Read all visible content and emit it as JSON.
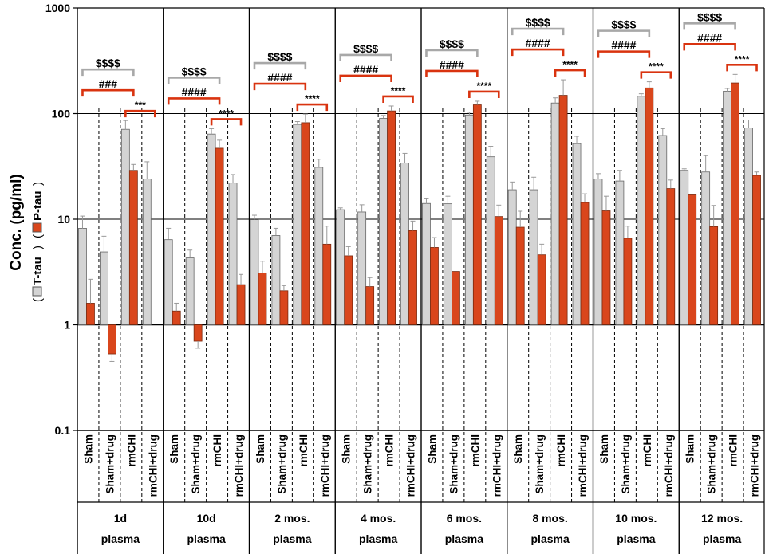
{
  "chart_data": {
    "type": "bar",
    "scale": "log",
    "title": "",
    "ylabel": "Conc. (pg/ml)",
    "legend": [
      {
        "name": "T-tau",
        "color": "#d4d4d4"
      },
      {
        "name": "P-tau",
        "color": "#d9461c"
      }
    ],
    "ylim": [
      0.1,
      1000
    ],
    "yticks": [
      "0.1",
      "1",
      "10",
      "100",
      "1000"
    ],
    "ytick_values": [
      0.1,
      1,
      10,
      100,
      1000
    ],
    "categories": [
      "Sham",
      "Sham+drug",
      "rmCHI",
      "rmCHI+drug"
    ],
    "groups": [
      {
        "line1": "1d",
        "line2": "plasma",
        "ttau": [
          8.2,
          4.9,
          71,
          24
        ],
        "ttau_err": [
          2.5,
          2.0,
          15,
          11
        ],
        "ptau": [
          1.6,
          0.53,
          29,
          0.0
        ],
        "ptau_err": [
          1.1,
          0.08,
          4,
          0.0
        ],
        "sig": [
          {
            "sym": "$$$$",
            "from": 0,
            "to": 2,
            "level": 3,
            "color": "gray"
          },
          {
            "sym": "###",
            "from": 0,
            "to": 2,
            "level": 2,
            "color": "red"
          },
          {
            "sym": "***",
            "from": 2,
            "to": 3,
            "level": 1,
            "color": "red"
          }
        ]
      },
      {
        "line1": "10d",
        "line2": "plasma",
        "ttau": [
          6.4,
          4.3,
          64,
          22
        ],
        "ttau_err": [
          1.8,
          0.8,
          8,
          4.5
        ],
        "ptau": [
          1.35,
          0.7,
          47,
          2.4
        ],
        "ptau_err": [
          0.25,
          0.1,
          9,
          0.6
        ],
        "sig": [
          {
            "sym": "$$$$",
            "from": 0,
            "to": 2,
            "level": 3,
            "color": "gray"
          },
          {
            "sym": "####",
            "from": 0,
            "to": 2,
            "level": 2,
            "color": "red"
          },
          {
            "sym": "****",
            "from": 2,
            "to": 3,
            "level": 1,
            "color": "red"
          }
        ]
      },
      {
        "line1": "2 mos.",
        "line2": "plasma",
        "ttau": [
          9.9,
          7.0,
          79,
          31
        ],
        "ttau_err": [
          1.0,
          1.2,
          5,
          6
        ],
        "ptau": [
          3.1,
          2.1,
          82,
          5.8
        ],
        "ptau_err": [
          0.9,
          0.25,
          17,
          2.8
        ],
        "sig": [
          {
            "sym": "$$$$",
            "from": 0,
            "to": 2,
            "level": 3,
            "color": "gray"
          },
          {
            "sym": "####",
            "from": 0,
            "to": 2,
            "level": 2,
            "color": "red"
          },
          {
            "sym": "****",
            "from": 2,
            "to": 3,
            "level": 1,
            "color": "red"
          }
        ]
      },
      {
        "line1": "4 mos.",
        "line2": "plasma",
        "ttau": [
          12.3,
          11.7,
          90,
          34
        ],
        "ttau_err": [
          0.5,
          2.0,
          6,
          8
        ],
        "ptau": [
          4.5,
          2.3,
          106,
          7.8
        ],
        "ptau_err": [
          1.0,
          0.5,
          12,
          1.8
        ],
        "sig": [
          {
            "sym": "$$$$",
            "from": 0,
            "to": 2,
            "level": 3,
            "color": "gray"
          },
          {
            "sym": "####",
            "from": 0,
            "to": 2,
            "level": 2,
            "color": "red"
          },
          {
            "sym": "****",
            "from": 2,
            "to": 3,
            "level": 1,
            "color": "red"
          }
        ]
      },
      {
        "line1": "6 mos.",
        "line2": "plasma",
        "ttau": [
          14.1,
          14.0,
          97,
          39
        ],
        "ttau_err": [
          1.5,
          2.5,
          6,
          10
        ],
        "ptau": [
          5.4,
          3.2,
          121,
          10.6
        ],
        "ptau_err": [
          1.3,
          0.0,
          10,
          3.0
        ],
        "sig": [
          {
            "sym": "$$$$",
            "from": 0,
            "to": 2,
            "level": 3,
            "color": "gray"
          },
          {
            "sym": "####",
            "from": 0,
            "to": 2,
            "level": 2,
            "color": "red"
          },
          {
            "sym": "****",
            "from": 2,
            "to": 3,
            "level": 1,
            "color": "red"
          }
        ]
      },
      {
        "line1": "8 mos.",
        "line2": "plasma",
        "ttau": [
          19,
          19,
          126,
          52
        ],
        "ttau_err": [
          3.5,
          6,
          15,
          9
        ],
        "ptau": [
          8.4,
          4.6,
          149,
          14.4
        ],
        "ptau_err": [
          3.5,
          1.2,
          60,
          3.0
        ],
        "sig": [
          {
            "sym": "$$$$",
            "from": 0,
            "to": 2,
            "level": 3,
            "color": "gray"
          },
          {
            "sym": "####",
            "from": 0,
            "to": 2,
            "level": 2,
            "color": "red"
          },
          {
            "sym": "****",
            "from": 2,
            "to": 3,
            "level": 1,
            "color": "red"
          }
        ]
      },
      {
        "line1": "10 mos.",
        "line2": "plasma",
        "ttau": [
          24,
          23,
          146,
          62
        ],
        "ttau_err": [
          3,
          6,
          8,
          10
        ],
        "ptau": [
          12,
          6.6,
          175,
          19.5
        ],
        "ptau_err": [
          4.5,
          2.0,
          25,
          4.0
        ],
        "sig": [
          {
            "sym": "$$$$",
            "from": 0,
            "to": 2,
            "level": 3,
            "color": "gray"
          },
          {
            "sym": "####",
            "from": 0,
            "to": 2,
            "level": 2,
            "color": "red"
          },
          {
            "sym": "****",
            "from": 2,
            "to": 3,
            "level": 1,
            "color": "red"
          }
        ]
      },
      {
        "line1": "12 mos.",
        "line2": "plasma",
        "ttau": [
          29,
          28,
          163,
          73
        ],
        "ttau_err": [
          1,
          12,
          10,
          14
        ],
        "ptau": [
          17,
          8.5,
          195,
          26
        ],
        "ptau_err": [
          0.0,
          5.0,
          40,
          2.0
        ],
        "sig": [
          {
            "sym": "$$$$",
            "from": 0,
            "to": 2,
            "level": 3,
            "color": "gray"
          },
          {
            "sym": "####",
            "from": 0,
            "to": 2,
            "level": 2,
            "color": "red"
          },
          {
            "sym": "****",
            "from": 2,
            "to": 3,
            "level": 1,
            "color": "red"
          }
        ]
      }
    ]
  }
}
